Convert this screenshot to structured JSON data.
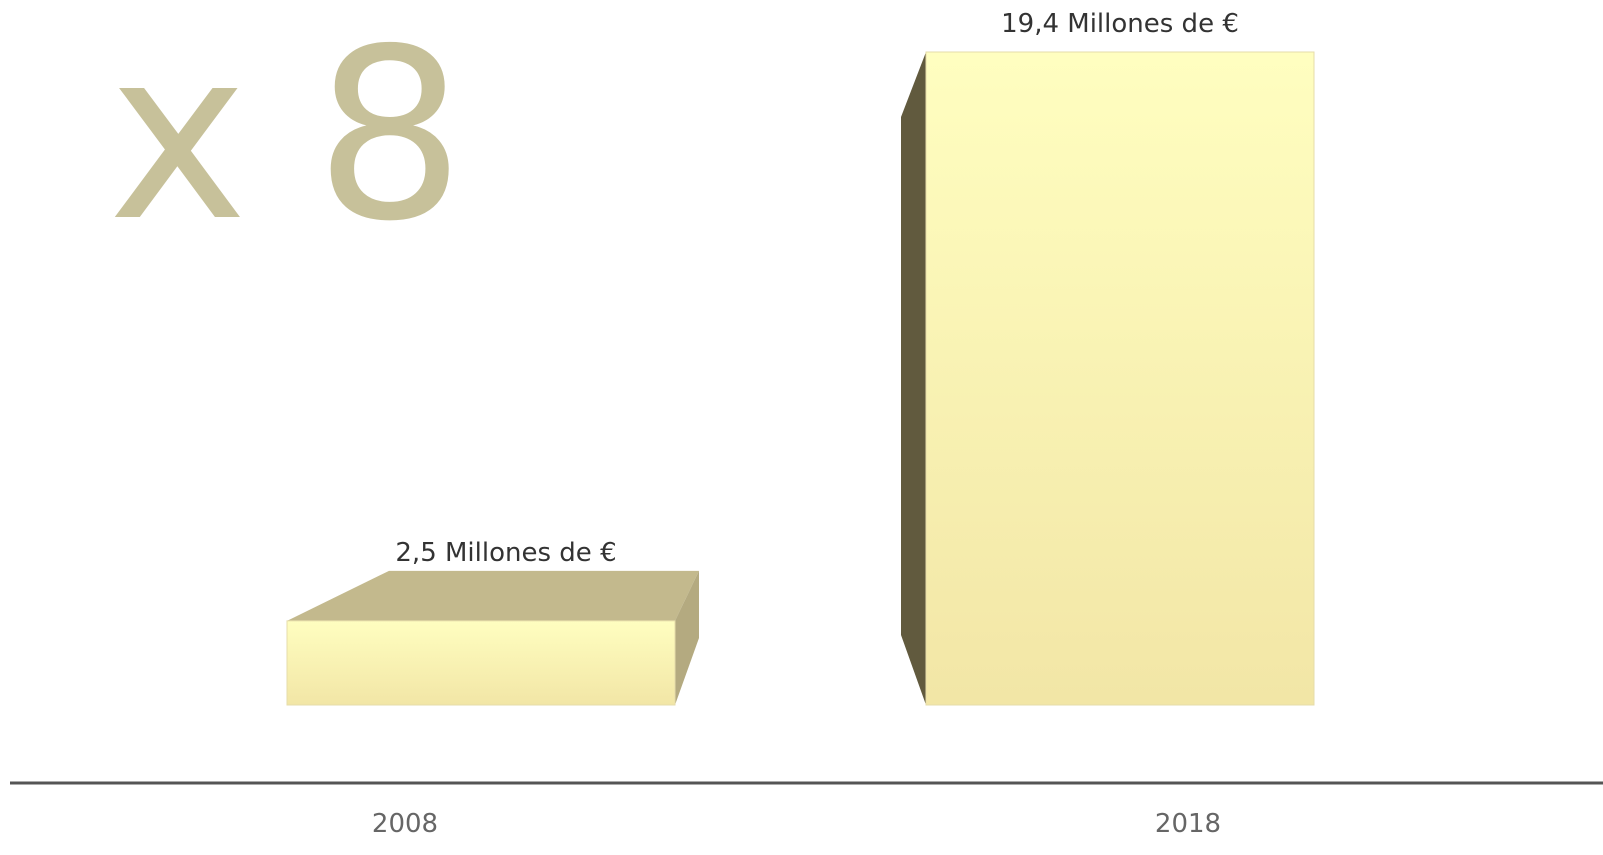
{
  "headline": "x 8",
  "chart_data": {
    "type": "bar",
    "categories": [
      "2008",
      "2018"
    ],
    "values": [
      2.5,
      19.4
    ],
    "data_labels": [
      "2,5 Millones de €",
      "19,4 Millones de €"
    ],
    "ylim": [
      0,
      19.4
    ],
    "grid": false,
    "legend": "none"
  },
  "colors": {
    "front_light": "#fffec0",
    "front_dark": "#f2e6a6",
    "top_face": "#c3b98d",
    "side_light": "#b4aa80",
    "side_dark": "#615a3e",
    "axis": "#555555",
    "headline": "#c7c19a"
  }
}
